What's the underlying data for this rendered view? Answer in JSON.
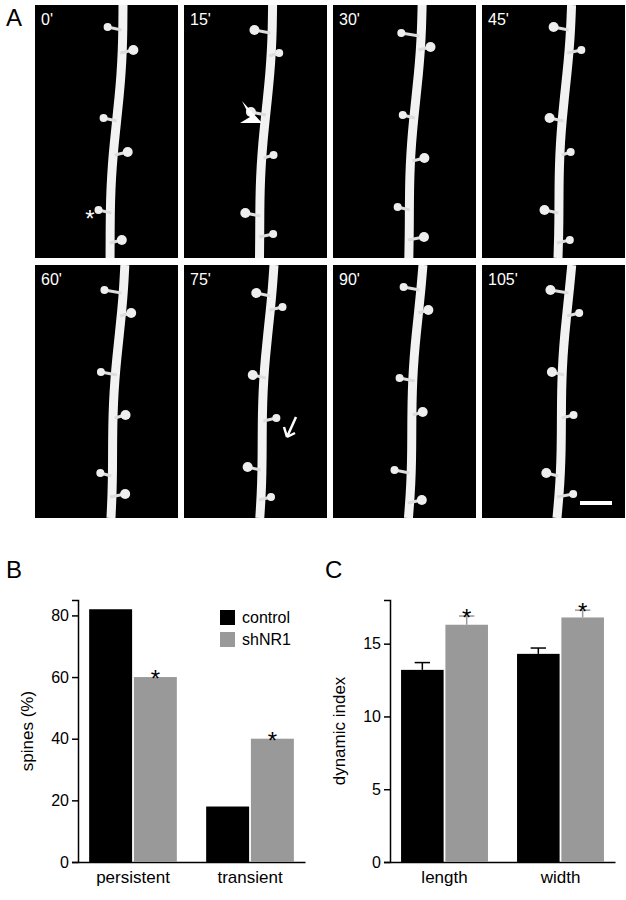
{
  "image_panel": {
    "label": "A",
    "frames": [
      "0'",
      "15'",
      "30'",
      "45'",
      "60'",
      "75'",
      "90'",
      "105'"
    ],
    "markers": [
      {
        "frame": 0,
        "text": "*"
      }
    ]
  },
  "chart_data": [
    {
      "type": "bar",
      "title": "B",
      "y_label": "spines (%)",
      "categories": [
        "persistent",
        "transient"
      ],
      "series": [
        {
          "name": "control",
          "color": "#000000",
          "values": [
            82,
            18
          ]
        },
        {
          "name": "shNR1",
          "color": "#999999",
          "values": [
            60,
            40
          ]
        }
      ],
      "ylim": [
        0,
        85
      ],
      "yticks": [
        0,
        20,
        40,
        60,
        80
      ],
      "legend": "upper right",
      "annotations": [
        {
          "text": "*",
          "category": 0,
          "series": 1
        },
        {
          "text": "*",
          "category": 1,
          "series": 1
        }
      ]
    },
    {
      "type": "bar",
      "title": "C",
      "y_label": "dynamic index",
      "categories": [
        "length",
        "width"
      ],
      "series": [
        {
          "color": "#000000",
          "values": [
            13.2,
            14.3
          ],
          "errors": [
            0.5,
            0.4
          ]
        },
        {
          "color": "#999999",
          "values": [
            16.3,
            16.8
          ],
          "errors": [
            0.6,
            0.5
          ]
        }
      ],
      "ylim": [
        0,
        18
      ],
      "yticks": [
        0,
        5,
        10,
        15
      ],
      "annotations": [
        {
          "text": "*",
          "category": 0,
          "series": 1
        },
        {
          "text": "*",
          "category": 1,
          "series": 1
        }
      ]
    }
  ]
}
